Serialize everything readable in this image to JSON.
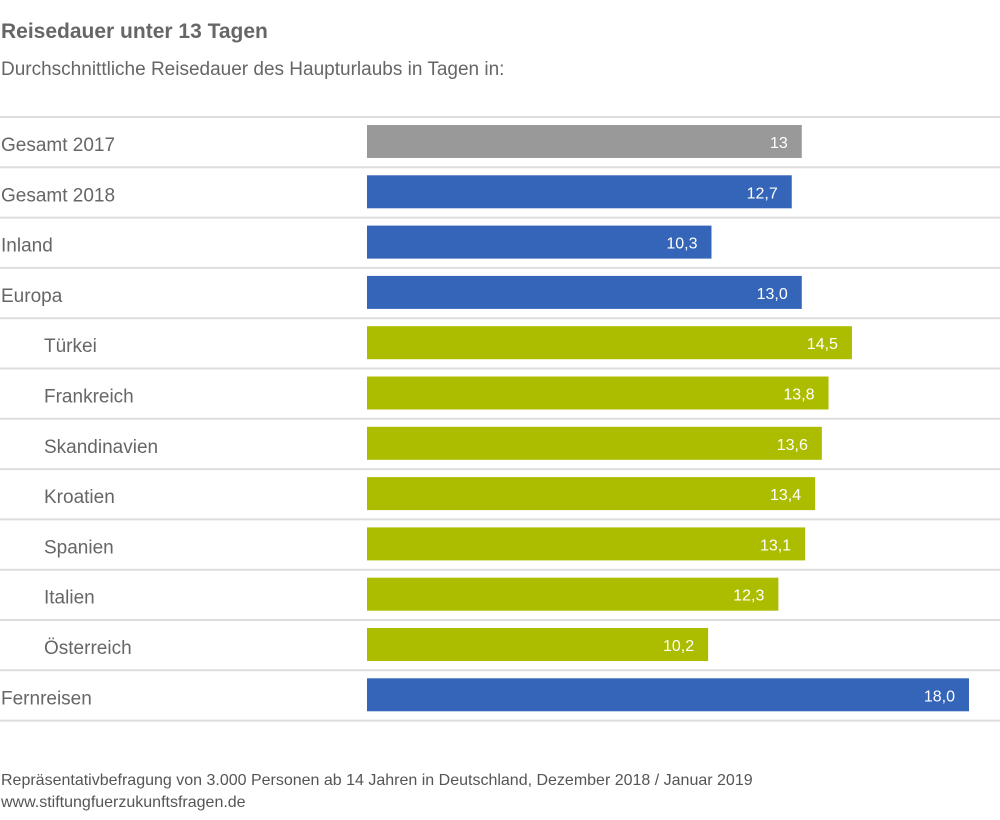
{
  "chart_data": {
    "type": "bar",
    "orientation": "horizontal",
    "title": "Reisedauer unter 13 Tagen",
    "subtitle": "Durchschnittliche Reisedauer des Haupturlaubs in Tagen in:",
    "xlabel": "",
    "ylabel": "",
    "xlim": [
      0,
      18
    ],
    "grid": false,
    "legend": "none",
    "categories": [
      "Gesamt 2017",
      "Gesamt 2018",
      "Inland",
      "Europa",
      "Türkei",
      "Frankreich",
      "Skandinavien",
      "Kroatien",
      "Spanien",
      "Italien",
      "Österreich",
      "Fernreisen"
    ],
    "values": [
      13,
      12.7,
      10.3,
      13.0,
      14.5,
      13.8,
      13.6,
      13.4,
      13.1,
      12.3,
      10.2,
      18.0
    ],
    "value_labels": [
      "13",
      "12,7",
      "10,3",
      "13,0",
      "14,5",
      "13,8",
      "13,6",
      "13,4",
      "13,1",
      "12,3",
      "10,2",
      "18,0"
    ],
    "indented": [
      false,
      false,
      false,
      false,
      true,
      true,
      true,
      true,
      true,
      true,
      true,
      false
    ],
    "bar_colors": [
      "#999999",
      "#3465b8",
      "#3465b8",
      "#3465b8",
      "#acbd00",
      "#acbd00",
      "#acbd00",
      "#acbd00",
      "#acbd00",
      "#acbd00",
      "#acbd00",
      "#3465b8"
    ]
  },
  "colors": {
    "gray": "#999999",
    "blue": "#3465b8",
    "green": "#acbd00",
    "separator": "#dddddd",
    "text": "#666666"
  },
  "footer": {
    "source": "Repräsentativbefragung von 3.000 Personen ab 14 Jahren in Deutschland, Dezember 2018 / Januar 2019",
    "website": "www.stiftungfuerzukunftsfragen.de"
  }
}
